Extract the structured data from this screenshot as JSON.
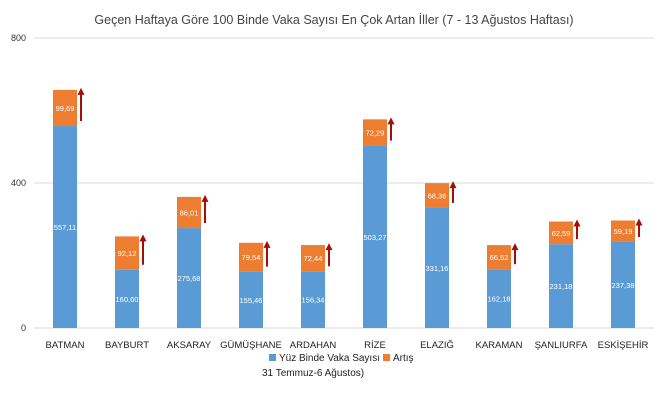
{
  "chart_data": {
    "type": "bar",
    "stacked": true,
    "title": "Geçen Haftaya Göre 100 Binde Vaka Sayısı En Çok Artan İller (7 - 13 Ağustos Haftası)",
    "categories": [
      "BATMAN",
      "BAYBURT",
      "AKSARAY",
      "GÜMÜŞHANE",
      "ARDAHAN",
      "RİZE",
      "ELAZIĞ",
      "KARAMAN",
      "ŞANLIURFA",
      "ESKİŞEHİR"
    ],
    "series": [
      {
        "name": "Yüz Binde Vaka Sayısı 31 Temmuz-6 Ağustos)",
        "values": [
          557.11,
          160.6,
          275.68,
          155.46,
          156.34,
          503.27,
          331.16,
          162.18,
          231.18,
          237.38
        ],
        "labels": [
          "557,11",
          "160,60",
          "275,68",
          "155,46",
          "156,34",
          "503,27",
          "331,16",
          "162,18",
          "231,18",
          "237,38"
        ],
        "color": "#5b9bd5"
      },
      {
        "name": "Artış",
        "values": [
          99.69,
          92.12,
          86.01,
          79.54,
          72.44,
          72.29,
          68.36,
          66.52,
          62.59,
          59.19
        ],
        "labels": [
          "99,69",
          "92,12",
          "86,01",
          "79,54",
          "72,44",
          "72,29",
          "68,36",
          "66,52",
          "62,59",
          "59,19"
        ],
        "color": "#ed7d31"
      }
    ],
    "ylim": [
      0,
      800
    ],
    "yticks": [
      "0",
      "400",
      "800"
    ],
    "arrow_color": "#a50d0d",
    "gridline_color": "#d9d9d9",
    "legend_position": "bottom",
    "legend": {
      "item1_line1": "Yüz Binde Vaka Sayısı",
      "item1_line2": "31 Temmuz-6 Ağustos)",
      "item2": "Artış"
    }
  }
}
